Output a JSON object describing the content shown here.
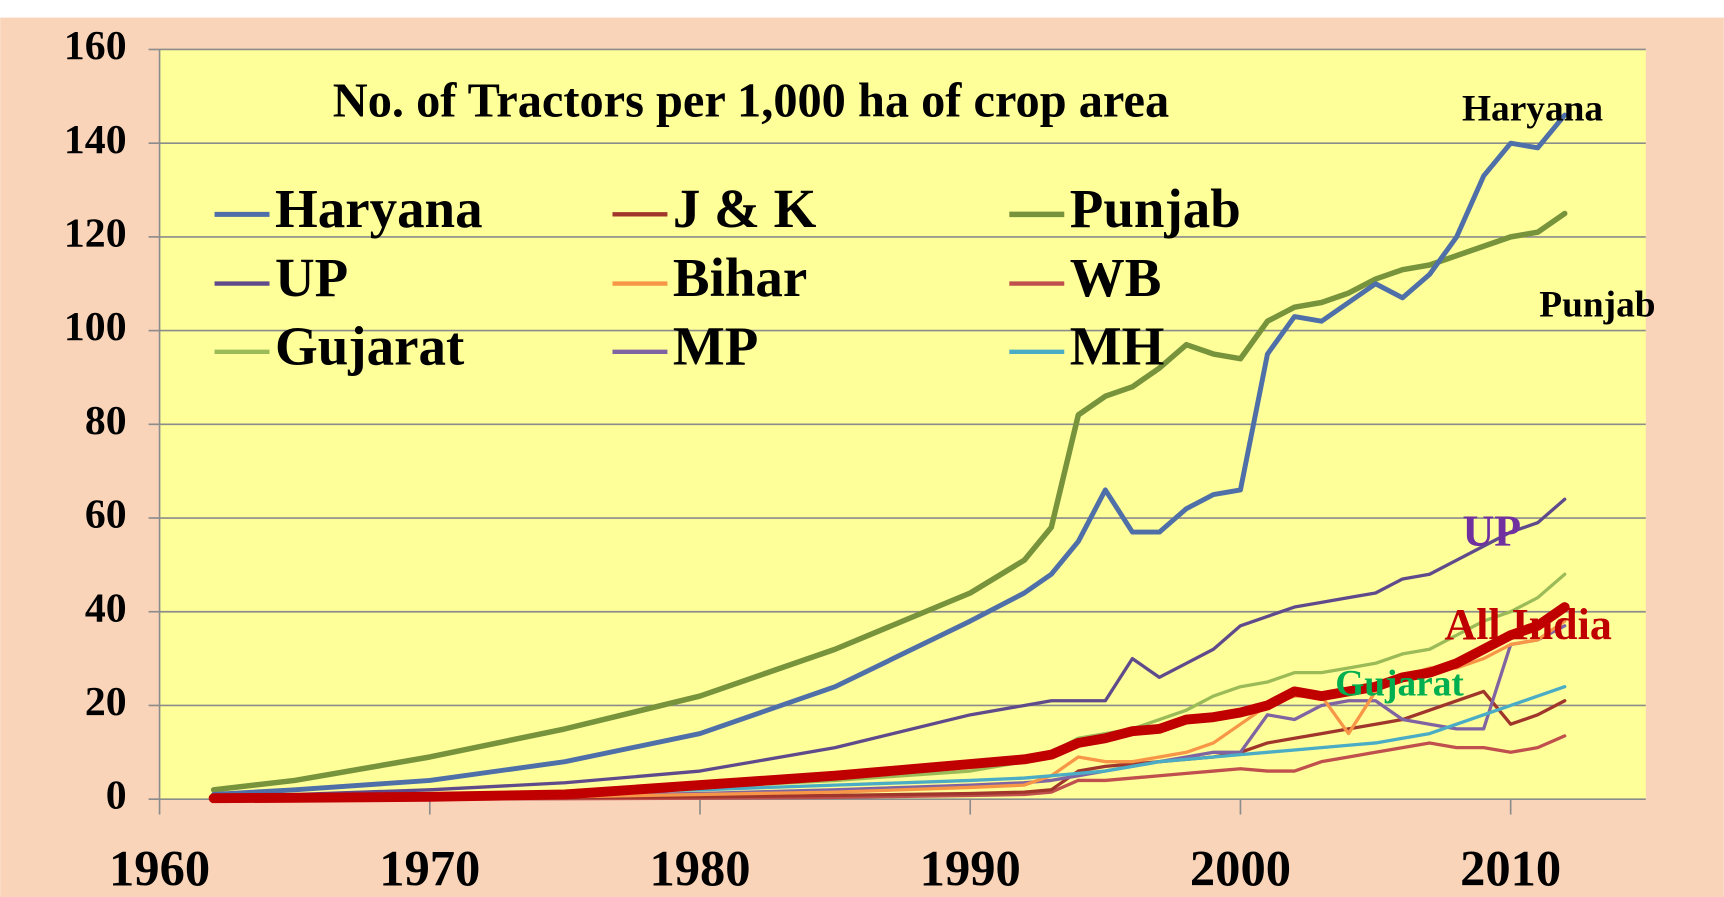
{
  "chart_data": {
    "type": "line",
    "title": "No. of Tractors per  1,000 ha of crop area",
    "x": [
      1962,
      1965,
      1970,
      1975,
      1980,
      1985,
      1990,
      1992,
      1993,
      1994,
      1995,
      1996,
      1997,
      1998,
      1999,
      2000,
      2001,
      2002,
      2003,
      2004,
      2005,
      2006,
      2007,
      2008,
      2009,
      2010,
      2011,
      2012
    ],
    "series": [
      {
        "name": "Haryana",
        "color": "#4f6fa8",
        "values": [
          1,
          2,
          4,
          8,
          14,
          24,
          38,
          44,
          48,
          55,
          66,
          57,
          57,
          62,
          65,
          66,
          95,
          103,
          102,
          106,
          110,
          107,
          112,
          120,
          133,
          140,
          139,
          146
        ]
      },
      {
        "name": "J & K",
        "color": "#a0362b",
        "values": [
          0,
          0,
          0.2,
          0.3,
          0.5,
          0.8,
          1.2,
          1.5,
          2,
          6,
          7,
          7.5,
          8,
          8.5,
          9,
          10,
          12,
          13,
          14,
          15,
          16,
          17,
          19,
          21,
          23,
          16,
          18,
          21
        ]
      },
      {
        "name": "Punjab",
        "color": "#77933c",
        "values": [
          2,
          4,
          9,
          15,
          22,
          32,
          44,
          51,
          58,
          82,
          86,
          88,
          92,
          97,
          95,
          94,
          102,
          105,
          106,
          108,
          111,
          113,
          114,
          116,
          118,
          120,
          121,
          125
        ]
      },
      {
        "name": "UP",
        "color": "#5f4b8b",
        "values": [
          0.5,
          1,
          2,
          3.5,
          6,
          11,
          18,
          20,
          21,
          21,
          21,
          30,
          26,
          29,
          32,
          37,
          39,
          41,
          42,
          43,
          44,
          47,
          48,
          51,
          54,
          57,
          59,
          64
        ]
      },
      {
        "name": "Bihar",
        "color": "#f79646",
        "values": [
          0.1,
          0.2,
          0.3,
          0.5,
          1,
          1.5,
          2.5,
          3,
          5,
          9,
          8,
          8,
          9,
          10,
          12,
          16,
          20,
          22,
          22,
          14,
          23,
          26,
          28,
          28,
          30,
          33,
          34,
          38
        ]
      },
      {
        "name": "WB",
        "color": "#c0504d",
        "values": [
          0,
          0,
          0,
          0.1,
          0.2,
          0.4,
          0.8,
          1,
          1.5,
          4,
          4,
          4.5,
          5,
          5.5,
          6,
          6.5,
          6,
          6,
          8,
          9,
          10,
          11,
          12,
          11,
          11,
          10,
          11,
          13.5
        ]
      },
      {
        "name": "Gujarat",
        "color": "#9bbb59",
        "values": [
          0.3,
          0.5,
          1,
          1.5,
          2.5,
          4,
          6,
          8,
          10,
          13,
          14,
          15,
          17,
          19,
          22,
          24,
          25,
          27,
          27,
          28,
          29,
          31,
          32,
          35,
          38,
          40,
          43,
          48
        ]
      },
      {
        "name": "MP",
        "color": "#8064a2",
        "values": [
          0.1,
          0.2,
          0.5,
          0.8,
          1.2,
          2,
          3,
          3.5,
          4,
          5,
          6,
          7,
          8,
          9,
          10,
          10,
          18,
          17,
          20,
          21,
          21,
          17,
          16,
          15,
          15,
          33,
          34,
          37
        ]
      },
      {
        "name": "MH",
        "color": "#4bacc6",
        "values": [
          0.3,
          0.5,
          1,
          1.5,
          2,
          3,
          4,
          4.5,
          5,
          5.5,
          6,
          7,
          8,
          8.5,
          9,
          9.5,
          10,
          10.5,
          11,
          11.5,
          12,
          13,
          14,
          16,
          18,
          20,
          22,
          24
        ]
      },
      {
        "name": "All  India",
        "color": "#c00000",
        "values": [
          0.2,
          0.3,
          0.5,
          1,
          3,
          5,
          7.5,
          8.5,
          9.5,
          12,
          13,
          14.5,
          15,
          17,
          17.5,
          18.5,
          20,
          23,
          22,
          23,
          24,
          26,
          27,
          29,
          32,
          35,
          37,
          41
        ]
      }
    ],
    "annotations": [
      {
        "text": "Haryana",
        "color": "#000000"
      },
      {
        "text": "Punjab",
        "color": "#000000"
      },
      {
        "text": "UP",
        "color": "#7030a0"
      },
      {
        "text": "All  India",
        "color": "#c00000"
      },
      {
        "text": "Gujarat",
        "color": "#00b050"
      }
    ],
    "xlim": [
      1960,
      2015
    ],
    "ylim": [
      0,
      160
    ],
    "xticks": [
      1960,
      1970,
      1980,
      1990,
      2000,
      2010
    ],
    "yticks": [
      0,
      20,
      40,
      60,
      80,
      100,
      120,
      140,
      160
    ],
    "grid": true
  }
}
